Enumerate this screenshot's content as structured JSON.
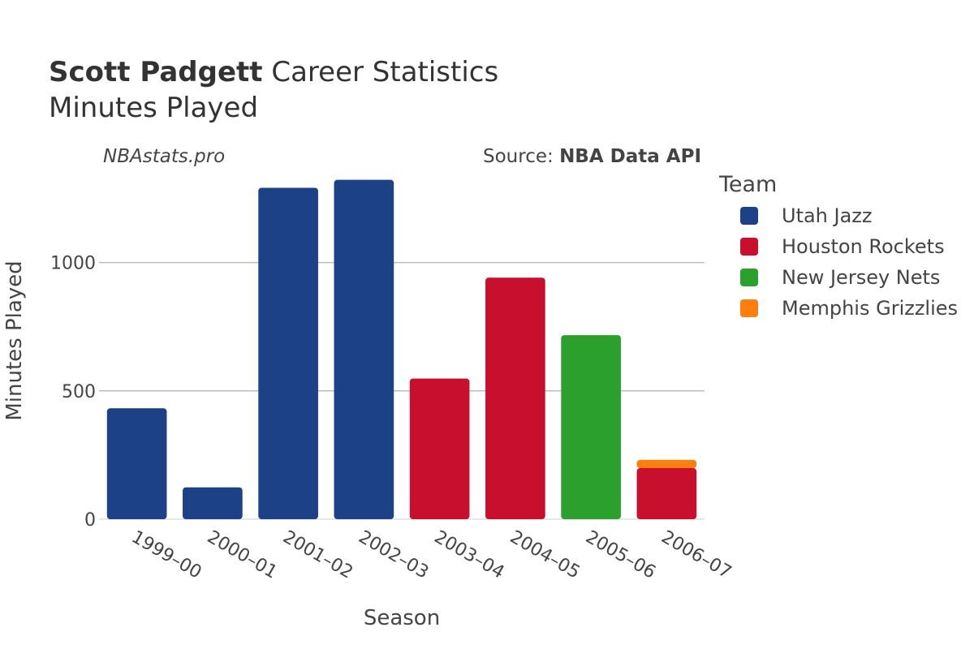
{
  "header": {
    "title_bold": "Scott Padgett",
    "title_rest": " Career Statistics",
    "subtitle": "Minutes Played",
    "watermark": "NBAstats.pro",
    "source_prefix": "Source: ",
    "source_bold": "NBA Data API"
  },
  "legend": {
    "title": "Team"
  },
  "colors": {
    "Utah Jazz": "#1d4186",
    "Houston Rockets": "#c8102e",
    "New Jersey Nets": "#2ca02c",
    "Memphis Grizzlies": "#ff7f0e"
  },
  "chart_data": {
    "type": "bar",
    "stacked": true,
    "xlabel": "Season",
    "ylabel": "Minutes Played",
    "ylim": [
      0,
      1400
    ],
    "yticks": [
      0,
      500,
      1000
    ],
    "grid": true,
    "legend_position": "right",
    "categories": [
      "1999–00",
      "2000–01",
      "2001–02",
      "2002–03",
      "2003–04",
      "2004–05",
      "2005–06",
      "2006–07"
    ],
    "series": [
      {
        "name": "Utah Jazz",
        "values": [
          432,
          124,
          1291,
          1322,
          0,
          0,
          0,
          0
        ]
      },
      {
        "name": "Houston Rockets",
        "values": [
          0,
          0,
          0,
          0,
          548,
          941,
          0,
          199
        ]
      },
      {
        "name": "New Jersey Nets",
        "values": [
          0,
          0,
          0,
          0,
          0,
          0,
          717,
          0
        ]
      },
      {
        "name": "Memphis Grizzlies",
        "values": [
          0,
          0,
          0,
          0,
          0,
          0,
          0,
          32
        ]
      }
    ]
  }
}
